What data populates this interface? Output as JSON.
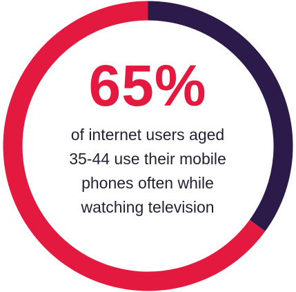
{
  "chart_data": {
    "type": "pie",
    "style": "donut",
    "start_angle_deg": 0,
    "direction": "clockwise",
    "slices": [
      {
        "value": 35,
        "color": "#2b1a4a"
      },
      {
        "value": 65,
        "color": "#e3193f"
      }
    ],
    "headline": "65%",
    "headline_color": "#e3193f",
    "caption_lines": [
      "of internet users aged",
      "35-44 use their mobile",
      "phones often while",
      "watching television"
    ]
  }
}
